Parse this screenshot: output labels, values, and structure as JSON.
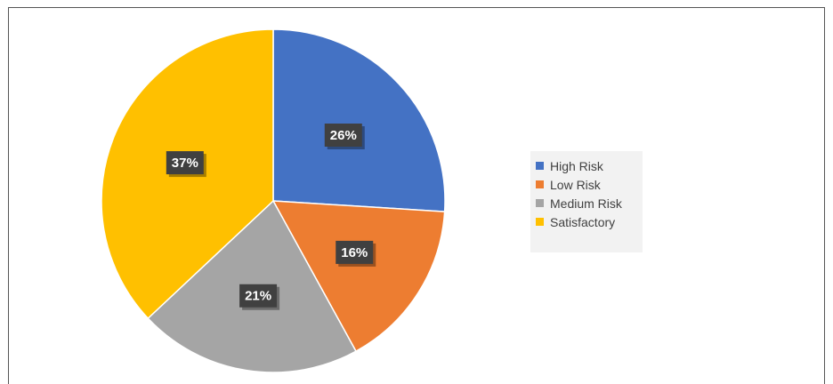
{
  "chart_data": {
    "type": "pie",
    "categories": [
      "High Risk",
      "Low Risk",
      "Medium Risk",
      "Satisfactory"
    ],
    "values": [
      26,
      16,
      21,
      37
    ],
    "data_labels": [
      "26%",
      "16%",
      "21%",
      "37%"
    ],
    "colors": [
      "#4472c4",
      "#ed7d31",
      "#a5a5a5",
      "#ffc000"
    ],
    "legend_position": "right",
    "start_angle": "top, clockwise"
  }
}
